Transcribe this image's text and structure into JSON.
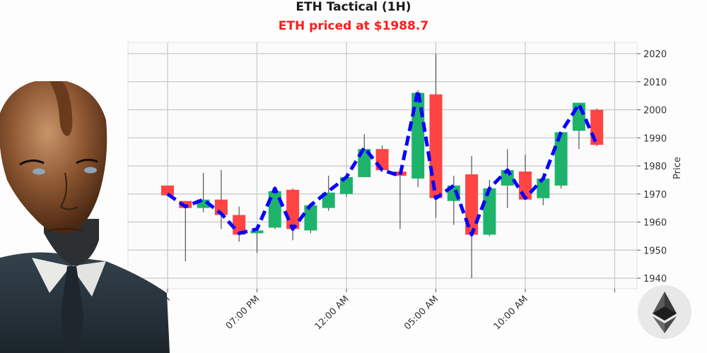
{
  "header": {
    "title": "ETH Tactical (1H)",
    "subtitle": "ETH priced at $1988.7",
    "subtitle_color": "#ff1a1a"
  },
  "icons": {
    "avatar": "android-businessman-portrait",
    "logo": "ethereum-logo-icon"
  },
  "colors": {
    "up": "#1db36b",
    "down": "#ff4444",
    "line": "#0a00ff",
    "grid": "#c8c8c8",
    "background": "#fdfdfd"
  },
  "chart_data": {
    "type": "candlestick",
    "title": "ETH Tactical (1H)",
    "subtitle": "ETH priced at $1988.7",
    "xlabel": "",
    "ylabel": "Price",
    "ylim": [
      1937,
      2024
    ],
    "yticks": [
      1940,
      1950,
      1960,
      1970,
      1980,
      1990,
      2000,
      2010,
      2020
    ],
    "xtick_labels": [
      "02:00 PM",
      "07:00 PM",
      "12:00 AM",
      "05:00 AM",
      "10:00 AM",
      ""
    ],
    "xtick_index": [
      0,
      5,
      10,
      15,
      20,
      25
    ],
    "grid": true,
    "y_axis_position": "right",
    "series": [
      {
        "name": "ETH OHLC",
        "candles": [
          {
            "o": 1973.0,
            "h": 1973.0,
            "l": 1969.5,
            "c": 1969.5
          },
          {
            "o": 1967.5,
            "h": 1967.5,
            "l": 1946.0,
            "c": 1965.0
          },
          {
            "o": 1965.0,
            "h": 1977.5,
            "l": 1963.5,
            "c": 1968.0
          },
          {
            "o": 1968.0,
            "h": 1978.5,
            "l": 1957.5,
            "c": 1962.5
          },
          {
            "o": 1962.5,
            "h": 1965.5,
            "l": 1953.0,
            "c": 1955.5
          },
          {
            "o": 1956.0,
            "h": 1957.5,
            "l": 1949.0,
            "c": 1957.0
          },
          {
            "o": 1958.0,
            "h": 1971.5,
            "l": 1957.5,
            "c": 1971.0
          },
          {
            "o": 1971.5,
            "h": 1972.0,
            "l": 1953.5,
            "c": 1957.5
          },
          {
            "o": 1957.0,
            "h": 1966.5,
            "l": 1956.0,
            "c": 1966.0
          },
          {
            "o": 1965.0,
            "h": 1976.5,
            "l": 1964.0,
            "c": 1970.5
          },
          {
            "o": 1970.0,
            "h": 1976.5,
            "l": 1969.0,
            "c": 1976.0
          },
          {
            "o": 1976.0,
            "h": 1991.3,
            "l": 1976.0,
            "c": 1986.0
          },
          {
            "o": 1986.0,
            "h": 1987.3,
            "l": 1978.0,
            "c": 1978.5
          },
          {
            "o": 1978.0,
            "h": 1979.0,
            "l": 1957.5,
            "c": 1976.5
          },
          {
            "o": 1975.5,
            "h": 2007.0,
            "l": 1972.5,
            "c": 2006.0
          },
          {
            "o": 2005.5,
            "h": 2020.0,
            "l": 1961.5,
            "c": 1968.5
          },
          {
            "o": 1967.5,
            "h": 1976.5,
            "l": 1959.0,
            "c": 1973.0
          },
          {
            "o": 1977.0,
            "h": 1983.5,
            "l": 1940.0,
            "c": 1955.5
          },
          {
            "o": 1955.5,
            "h": 1975.0,
            "l": 1955.0,
            "c": 1972.0
          },
          {
            "o": 1973.0,
            "h": 1986.0,
            "l": 1965.0,
            "c": 1978.5
          },
          {
            "o": 1978.0,
            "h": 1984.0,
            "l": 1968.0,
            "c": 1968.0
          },
          {
            "o": 1968.5,
            "h": 1976.0,
            "l": 1966.0,
            "c": 1975.5
          },
          {
            "o": 1973.0,
            "h": 1992.0,
            "l": 1972.0,
            "c": 1992.0
          },
          {
            "o": 1992.5,
            "h": 2002.5,
            "l": 1986.0,
            "c": 2002.5
          },
          {
            "o": 2000.0,
            "h": 2000.5,
            "l": 1987.0,
            "c": 1987.5
          }
        ]
      },
      {
        "name": "Trend (dashed)",
        "type": "line",
        "values": [
          1970,
          1965.5,
          1968,
          1963,
          1956,
          1957.5,
          1972,
          1957.5,
          1966,
          1971,
          1976,
          1986.5,
          1978.5,
          1976.5,
          2007,
          1968.5,
          1973,
          1955.5,
          1972,
          1978.5,
          1968.5,
          1975.5,
          1992,
          2002,
          1987.5
        ]
      }
    ]
  }
}
